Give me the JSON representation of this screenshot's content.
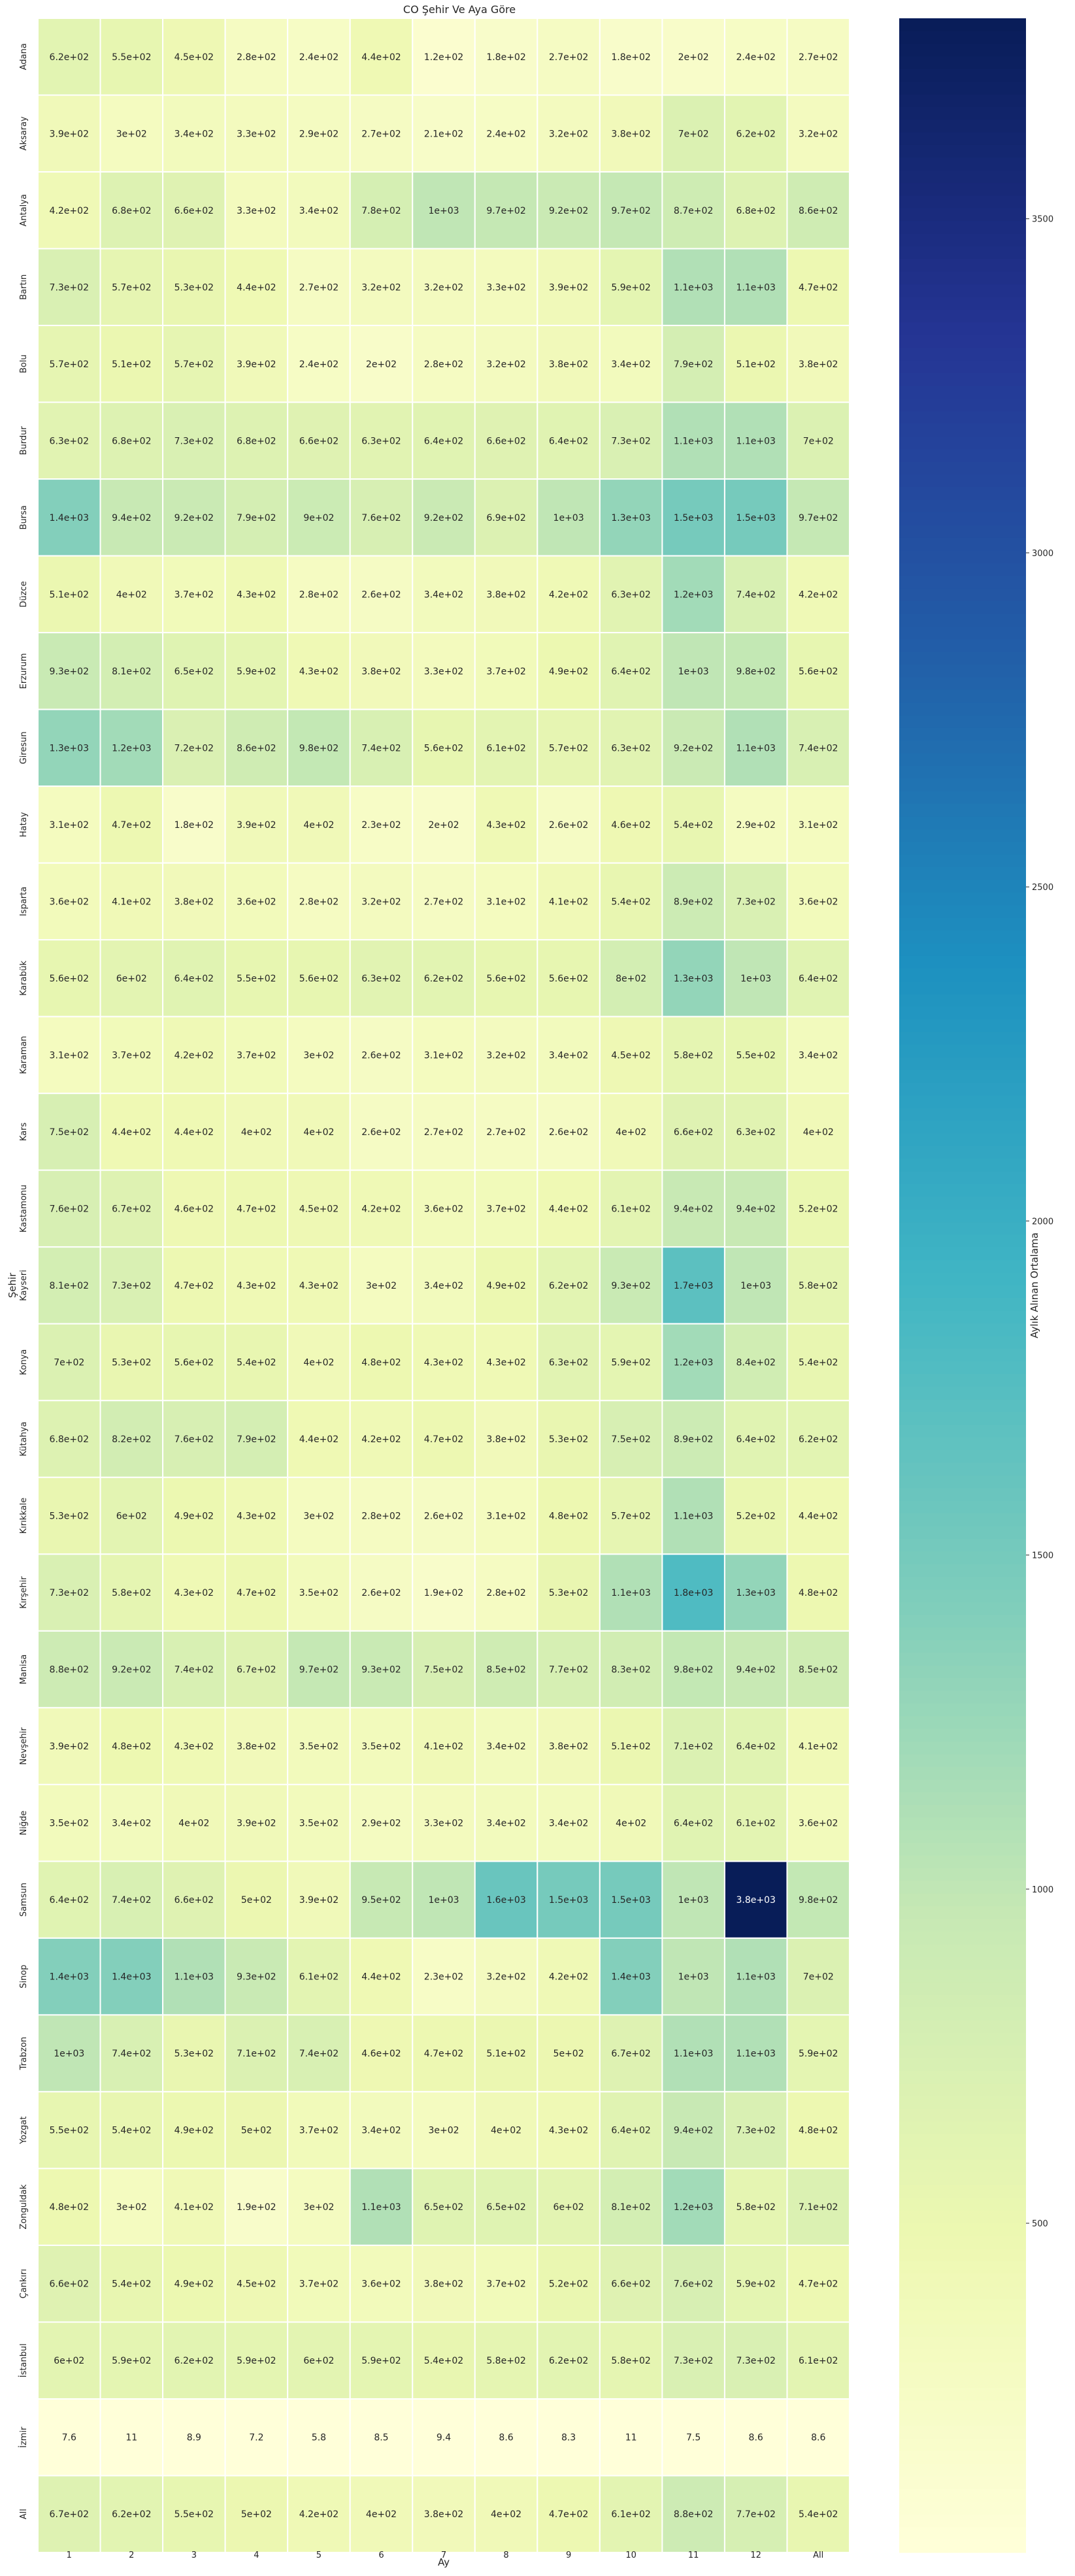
{
  "chart_data": {
    "type": "heatmap",
    "title": "CO Şehir Ve Aya Göre",
    "xlabel": "Ay",
    "ylabel": "Şehir",
    "colorbar_label": "Aylık Alınan Ortalama",
    "colormap": "YlGnBu",
    "color_range": [
      7.2,
      3800
    ],
    "colorbar_ticks": [
      500,
      1000,
      1500,
      2000,
      2500,
      3000,
      3500
    ],
    "columns": [
      "1",
      "2",
      "3",
      "4",
      "5",
      "6",
      "7",
      "8",
      "9",
      "10",
      "11",
      "12",
      "All"
    ],
    "rows": [
      "Adana",
      "Aksaray",
      "Antalya",
      "Bartın",
      "Bolu",
      "Burdur",
      "Bursa",
      "Düzce",
      "Erzurum",
      "Giresun",
      "Hatay",
      "Isparta",
      "Karabük",
      "Karaman",
      "Kars",
      "Kastamonu",
      "Kayseri",
      "Konya",
      "Kütahya",
      "Kırıkkale",
      "Kırşehir",
      "Manisa",
      "Nevşehir",
      "Niğde",
      "Samsun",
      "Sinop",
      "Trabzon",
      "Yozgat",
      "Zonguldak",
      "Çankırı",
      "İstanbul",
      "İzmir",
      "All"
    ],
    "values": [
      [
        620,
        550,
        450,
        280,
        240,
        440,
        120,
        180,
        270,
        180,
        200,
        240,
        270
      ],
      [
        390,
        300,
        340,
        330,
        290,
        270,
        210,
        240,
        320,
        380,
        700,
        620,
        320
      ],
      [
        420,
        680,
        660,
        330,
        340,
        780,
        1000,
        970,
        920,
        970,
        870,
        680,
        860
      ],
      [
        730,
        570,
        530,
        440,
        270,
        320,
        320,
        330,
        390,
        590,
        1100,
        1100,
        470
      ],
      [
        570,
        510,
        570,
        390,
        240,
        200,
        280,
        320,
        380,
        340,
        790,
        510,
        380
      ],
      [
        630,
        680,
        730,
        680,
        660,
        630,
        640,
        660,
        640,
        730,
        1100,
        1100,
        700
      ],
      [
        1400,
        940,
        920,
        790,
        900,
        760,
        920,
        690,
        1000,
        1300,
        1500,
        1500,
        970
      ],
      [
        510,
        400,
        370,
        430,
        280,
        260,
        340,
        380,
        420,
        630,
        1200,
        740,
        420
      ],
      [
        930,
        810,
        650,
        590,
        430,
        380,
        330,
        370,
        490,
        640,
        1000,
        980,
        560
      ],
      [
        1300,
        1200,
        720,
        860,
        980,
        740,
        560,
        610,
        570,
        630,
        920,
        1100,
        740
      ],
      [
        310,
        470,
        180,
        390,
        400,
        230,
        200,
        430,
        260,
        460,
        540,
        290,
        310
      ],
      [
        360,
        410,
        380,
        360,
        280,
        320,
        270,
        310,
        410,
        540,
        890,
        730,
        360
      ],
      [
        560,
        600,
        640,
        550,
        560,
        630,
        620,
        560,
        560,
        800,
        1300,
        1000,
        640
      ],
      [
        310,
        370,
        420,
        370,
        300,
        260,
        310,
        320,
        340,
        450,
        580,
        550,
        340
      ],
      [
        750,
        440,
        440,
        400,
        400,
        260,
        270,
        270,
        260,
        400,
        660,
        630,
        400
      ],
      [
        760,
        670,
        460,
        470,
        450,
        420,
        360,
        370,
        440,
        610,
        940,
        940,
        520
      ],
      [
        810,
        730,
        470,
        430,
        430,
        300,
        340,
        490,
        620,
        930,
        1700,
        1000,
        580
      ],
      [
        700,
        530,
        560,
        540,
        400,
        480,
        430,
        430,
        630,
        590,
        1200,
        840,
        540
      ],
      [
        680,
        820,
        760,
        790,
        440,
        420,
        470,
        380,
        530,
        750,
        890,
        640,
        620
      ],
      [
        530,
        600,
        490,
        430,
        300,
        280,
        260,
        310,
        480,
        570,
        1100,
        520,
        440
      ],
      [
        730,
        580,
        430,
        470,
        350,
        260,
        190,
        280,
        530,
        1100,
        1800,
        1300,
        480
      ],
      [
        880,
        920,
        740,
        670,
        970,
        930,
        750,
        850,
        770,
        830,
        980,
        940,
        850
      ],
      [
        390,
        480,
        430,
        380,
        350,
        350,
        410,
        340,
        380,
        510,
        710,
        640,
        410
      ],
      [
        350,
        340,
        400,
        390,
        350,
        290,
        330,
        340,
        340,
        400,
        640,
        610,
        360
      ],
      [
        640,
        740,
        660,
        500,
        390,
        950,
        1000,
        1600,
        1500,
        1500,
        1000,
        3800,
        980
      ],
      [
        1400,
        1400,
        1100,
        930,
        610,
        440,
        230,
        320,
        420,
        1400,
        1000,
        1100,
        700
      ],
      [
        1000,
        740,
        530,
        710,
        740,
        460,
        470,
        510,
        500,
        670,
        1100,
        1100,
        590
      ],
      [
        550,
        540,
        490,
        500,
        370,
        340,
        300,
        400,
        430,
        640,
        940,
        730,
        480
      ],
      [
        480,
        300,
        410,
        190,
        300,
        1100,
        650,
        650,
        600,
        810,
        1200,
        580,
        710
      ],
      [
        660,
        540,
        490,
        450,
        370,
        360,
        380,
        370,
        520,
        660,
        760,
        590,
        470
      ],
      [
        600,
        590,
        620,
        590,
        600,
        590,
        540,
        580,
        620,
        580,
        730,
        730,
        610
      ],
      [
        7.6,
        11,
        8.9,
        7.2,
        5.8,
        8.5,
        9.4,
        8.6,
        8.3,
        11,
        7.5,
        8.6,
        8.6
      ],
      [
        670,
        620,
        550,
        500,
        420,
        400,
        380,
        400,
        470,
        610,
        880,
        770,
        540
      ]
    ],
    "labels": [
      [
        "6.2e+02",
        "5.5e+02",
        "4.5e+02",
        "2.8e+02",
        "2.4e+02",
        "4.4e+02",
        "1.2e+02",
        "1.8e+02",
        "2.7e+02",
        "1.8e+02",
        "2e+02",
        "2.4e+02",
        "2.7e+02"
      ],
      [
        "3.9e+02",
        "3e+02",
        "3.4e+02",
        "3.3e+02",
        "2.9e+02",
        "2.7e+02",
        "2.1e+02",
        "2.4e+02",
        "3.2e+02",
        "3.8e+02",
        "7e+02",
        "6.2e+02",
        "3.2e+02"
      ],
      [
        "4.2e+02",
        "6.8e+02",
        "6.6e+02",
        "3.3e+02",
        "3.4e+02",
        "7.8e+02",
        "1e+03",
        "9.7e+02",
        "9.2e+02",
        "9.7e+02",
        "8.7e+02",
        "6.8e+02",
        "8.6e+02"
      ],
      [
        "7.3e+02",
        "5.7e+02",
        "5.3e+02",
        "4.4e+02",
        "2.7e+02",
        "3.2e+02",
        "3.2e+02",
        "3.3e+02",
        "3.9e+02",
        "5.9e+02",
        "1.1e+03",
        "1.1e+03",
        "4.7e+02"
      ],
      [
        "5.7e+02",
        "5.1e+02",
        "5.7e+02",
        "3.9e+02",
        "2.4e+02",
        "2e+02",
        "2.8e+02",
        "3.2e+02",
        "3.8e+02",
        "3.4e+02",
        "7.9e+02",
        "5.1e+02",
        "3.8e+02"
      ],
      [
        "6.3e+02",
        "6.8e+02",
        "7.3e+02",
        "6.8e+02",
        "6.6e+02",
        "6.3e+02",
        "6.4e+02",
        "6.6e+02",
        "6.4e+02",
        "7.3e+02",
        "1.1e+03",
        "1.1e+03",
        "7e+02"
      ],
      [
        "1.4e+03",
        "9.4e+02",
        "9.2e+02",
        "7.9e+02",
        "9e+02",
        "7.6e+02",
        "9.2e+02",
        "6.9e+02",
        "1e+03",
        "1.3e+03",
        "1.5e+03",
        "1.5e+03",
        "9.7e+02"
      ],
      [
        "5.1e+02",
        "4e+02",
        "3.7e+02",
        "4.3e+02",
        "2.8e+02",
        "2.6e+02",
        "3.4e+02",
        "3.8e+02",
        "4.2e+02",
        "6.3e+02",
        "1.2e+03",
        "7.4e+02",
        "4.2e+02"
      ],
      [
        "9.3e+02",
        "8.1e+02",
        "6.5e+02",
        "5.9e+02",
        "4.3e+02",
        "3.8e+02",
        "3.3e+02",
        "3.7e+02",
        "4.9e+02",
        "6.4e+02",
        "1e+03",
        "9.8e+02",
        "5.6e+02"
      ],
      [
        "1.3e+03",
        "1.2e+03",
        "7.2e+02",
        "8.6e+02",
        "9.8e+02",
        "7.4e+02",
        "5.6e+02",
        "6.1e+02",
        "5.7e+02",
        "6.3e+02",
        "9.2e+02",
        "1.1e+03",
        "7.4e+02"
      ],
      [
        "3.1e+02",
        "4.7e+02",
        "1.8e+02",
        "3.9e+02",
        "4e+02",
        "2.3e+02",
        "2e+02",
        "4.3e+02",
        "2.6e+02",
        "4.6e+02",
        "5.4e+02",
        "2.9e+02",
        "3.1e+02"
      ],
      [
        "3.6e+02",
        "4.1e+02",
        "3.8e+02",
        "3.6e+02",
        "2.8e+02",
        "3.2e+02",
        "2.7e+02",
        "3.1e+02",
        "4.1e+02",
        "5.4e+02",
        "8.9e+02",
        "7.3e+02",
        "3.6e+02"
      ],
      [
        "5.6e+02",
        "6e+02",
        "6.4e+02",
        "5.5e+02",
        "5.6e+02",
        "6.3e+02",
        "6.2e+02",
        "5.6e+02",
        "5.6e+02",
        "8e+02",
        "1.3e+03",
        "1e+03",
        "6.4e+02"
      ],
      [
        "3.1e+02",
        "3.7e+02",
        "4.2e+02",
        "3.7e+02",
        "3e+02",
        "2.6e+02",
        "3.1e+02",
        "3.2e+02",
        "3.4e+02",
        "4.5e+02",
        "5.8e+02",
        "5.5e+02",
        "3.4e+02"
      ],
      [
        "7.5e+02",
        "4.4e+02",
        "4.4e+02",
        "4e+02",
        "4e+02",
        "2.6e+02",
        "2.7e+02",
        "2.7e+02",
        "2.6e+02",
        "4e+02",
        "6.6e+02",
        "6.3e+02",
        "4e+02"
      ],
      [
        "7.6e+02",
        "6.7e+02",
        "4.6e+02",
        "4.7e+02",
        "4.5e+02",
        "4.2e+02",
        "3.6e+02",
        "3.7e+02",
        "4.4e+02",
        "6.1e+02",
        "9.4e+02",
        "9.4e+02",
        "5.2e+02"
      ],
      [
        "8.1e+02",
        "7.3e+02",
        "4.7e+02",
        "4.3e+02",
        "4.3e+02",
        "3e+02",
        "3.4e+02",
        "4.9e+02",
        "6.2e+02",
        "9.3e+02",
        "1.7e+03",
        "1e+03",
        "5.8e+02"
      ],
      [
        "7e+02",
        "5.3e+02",
        "5.6e+02",
        "5.4e+02",
        "4e+02",
        "4.8e+02",
        "4.3e+02",
        "4.3e+02",
        "6.3e+02",
        "5.9e+02",
        "1.2e+03",
        "8.4e+02",
        "5.4e+02"
      ],
      [
        "6.8e+02",
        "8.2e+02",
        "7.6e+02",
        "7.9e+02",
        "4.4e+02",
        "4.2e+02",
        "4.7e+02",
        "3.8e+02",
        "5.3e+02",
        "7.5e+02",
        "8.9e+02",
        "6.4e+02",
        "6.2e+02"
      ],
      [
        "5.3e+02",
        "6e+02",
        "4.9e+02",
        "4.3e+02",
        "3e+02",
        "2.8e+02",
        "2.6e+02",
        "3.1e+02",
        "4.8e+02",
        "5.7e+02",
        "1.1e+03",
        "5.2e+02",
        "4.4e+02"
      ],
      [
        "7.3e+02",
        "5.8e+02",
        "4.3e+02",
        "4.7e+02",
        "3.5e+02",
        "2.6e+02",
        "1.9e+02",
        "2.8e+02",
        "5.3e+02",
        "1.1e+03",
        "1.8e+03",
        "1.3e+03",
        "4.8e+02"
      ],
      [
        "8.8e+02",
        "9.2e+02",
        "7.4e+02",
        "6.7e+02",
        "9.7e+02",
        "9.3e+02",
        "7.5e+02",
        "8.5e+02",
        "7.7e+02",
        "8.3e+02",
        "9.8e+02",
        "9.4e+02",
        "8.5e+02"
      ],
      [
        "3.9e+02",
        "4.8e+02",
        "4.3e+02",
        "3.8e+02",
        "3.5e+02",
        "3.5e+02",
        "4.1e+02",
        "3.4e+02",
        "3.8e+02",
        "5.1e+02",
        "7.1e+02",
        "6.4e+02",
        "4.1e+02"
      ],
      [
        "3.5e+02",
        "3.4e+02",
        "4e+02",
        "3.9e+02",
        "3.5e+02",
        "2.9e+02",
        "3.3e+02",
        "3.4e+02",
        "3.4e+02",
        "4e+02",
        "6.4e+02",
        "6.1e+02",
        "3.6e+02"
      ],
      [
        "6.4e+02",
        "7.4e+02",
        "6.6e+02",
        "5e+02",
        "3.9e+02",
        "9.5e+02",
        "1e+03",
        "1.6e+03",
        "1.5e+03",
        "1.5e+03",
        "1e+03",
        "3.8e+03",
        "9.8e+02"
      ],
      [
        "1.4e+03",
        "1.4e+03",
        "1.1e+03",
        "9.3e+02",
        "6.1e+02",
        "4.4e+02",
        "2.3e+02",
        "3.2e+02",
        "4.2e+02",
        "1.4e+03",
        "1e+03",
        "1.1e+03",
        "7e+02"
      ],
      [
        "1e+03",
        "7.4e+02",
        "5.3e+02",
        "7.1e+02",
        "7.4e+02",
        "4.6e+02",
        "4.7e+02",
        "5.1e+02",
        "5e+02",
        "6.7e+02",
        "1.1e+03",
        "1.1e+03",
        "5.9e+02"
      ],
      [
        "5.5e+02",
        "5.4e+02",
        "4.9e+02",
        "5e+02",
        "3.7e+02",
        "3.4e+02",
        "3e+02",
        "4e+02",
        "4.3e+02",
        "6.4e+02",
        "9.4e+02",
        "7.3e+02",
        "4.8e+02"
      ],
      [
        "4.8e+02",
        "3e+02",
        "4.1e+02",
        "1.9e+02",
        "3e+02",
        "1.1e+03",
        "6.5e+02",
        "6.5e+02",
        "6e+02",
        "8.1e+02",
        "1.2e+03",
        "5.8e+02",
        "7.1e+02"
      ],
      [
        "6.6e+02",
        "5.4e+02",
        "4.9e+02",
        "4.5e+02",
        "3.7e+02",
        "3.6e+02",
        "3.8e+02",
        "3.7e+02",
        "5.2e+02",
        "6.6e+02",
        "7.6e+02",
        "5.9e+02",
        "4.7e+02"
      ],
      [
        "6e+02",
        "5.9e+02",
        "6.2e+02",
        "5.9e+02",
        "6e+02",
        "5.9e+02",
        "5.4e+02",
        "5.8e+02",
        "6.2e+02",
        "5.8e+02",
        "7.3e+02",
        "7.3e+02",
        "6.1e+02"
      ],
      [
        "7.6",
        "11",
        "8.9",
        "7.2",
        "5.8",
        "8.5",
        "9.4",
        "8.6",
        "8.3",
        "11",
        "7.5",
        "8.6",
        "8.6"
      ],
      [
        "6.7e+02",
        "6.2e+02",
        "5.5e+02",
        "5e+02",
        "4.2e+02",
        "4e+02",
        "3.8e+02",
        "4e+02",
        "4.7e+02",
        "6.1e+02",
        "8.8e+02",
        "7.7e+02",
        "5.4e+02"
      ]
    ]
  }
}
